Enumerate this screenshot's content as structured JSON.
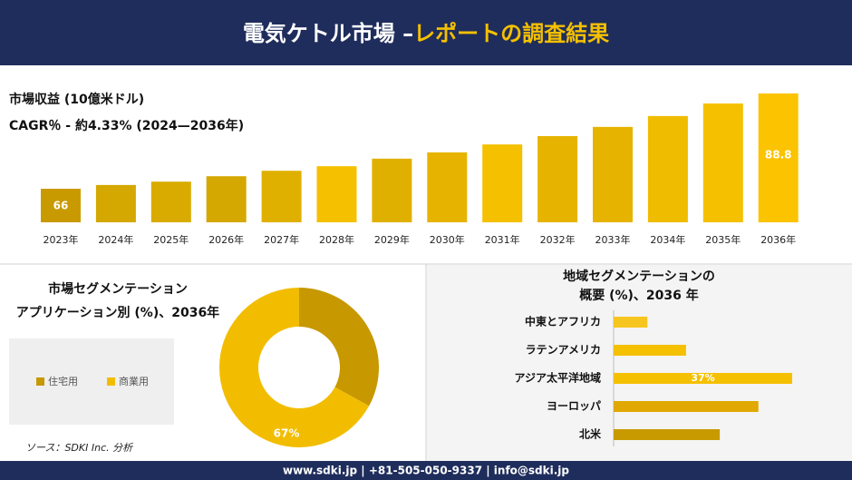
{
  "header": {
    "title_part1": "電気ケトル市場 –",
    "title_part2": "レポートの調査結果"
  },
  "chart_data": [
    {
      "type": "bar",
      "title": "市場収益 (10億米ドル)",
      "subtitle": "CAGR％ - 約4.33% (2024—2036年)",
      "categories": [
        "2023年",
        "2024年",
        "2025年",
        "2026年",
        "2027年",
        "2028年",
        "2029年",
        "2030年",
        "2031年",
        "2032年",
        "2033年",
        "2034年",
        "2035年",
        "2036年"
      ],
      "values": [
        66,
        66.9,
        67.7,
        69.0,
        70.3,
        71.4,
        73.2,
        74.7,
        76.6,
        78.6,
        80.8,
        83.4,
        86.4,
        88.8
      ],
      "colors": [
        "#c99a00",
        "#d4a800",
        "#d9ab00",
        "#d4a800",
        "#e0b000",
        "#f5c000",
        "#e0b000",
        "#e6b400",
        "#f5c000",
        "#e6b400",
        "#e6b400",
        "#f0bc00",
        "#f5c000",
        "#fbc300"
      ]
    },
    {
      "type": "donut",
      "title": [
        "市場セグメンテーション",
        "アプリケーション別 (%)、2036年"
      ],
      "categories": [
        "住宅用",
        "商業用"
      ],
      "values": [
        33,
        67
      ],
      "value_labels": [
        null,
        "67%"
      ],
      "colors": [
        "#c79800",
        "#f2bd00"
      ]
    },
    {
      "type": "hbar",
      "title": [
        "地域セグメンテーションの",
        "概要 (%)、2036 年"
      ],
      "categories": [
        "中東とアフリカ",
        "ラテンアメリカ",
        "アジア太平洋地域",
        "ヨーロッパ",
        "北米"
      ],
      "values": [
        7,
        15,
        37,
        30,
        22
      ],
      "value_labels": [
        null,
        null,
        "37%",
        null,
        null
      ],
      "colors": [
        "#f7c520",
        "#f5c000",
        "#f5c000",
        "#e0a800",
        "#c99a00"
      ]
    }
  ],
  "source": "ソース：SDKI Inc. 分析",
  "footer": "www.sdki.jp | +81-505-050-9337 | info@sdki.jp"
}
